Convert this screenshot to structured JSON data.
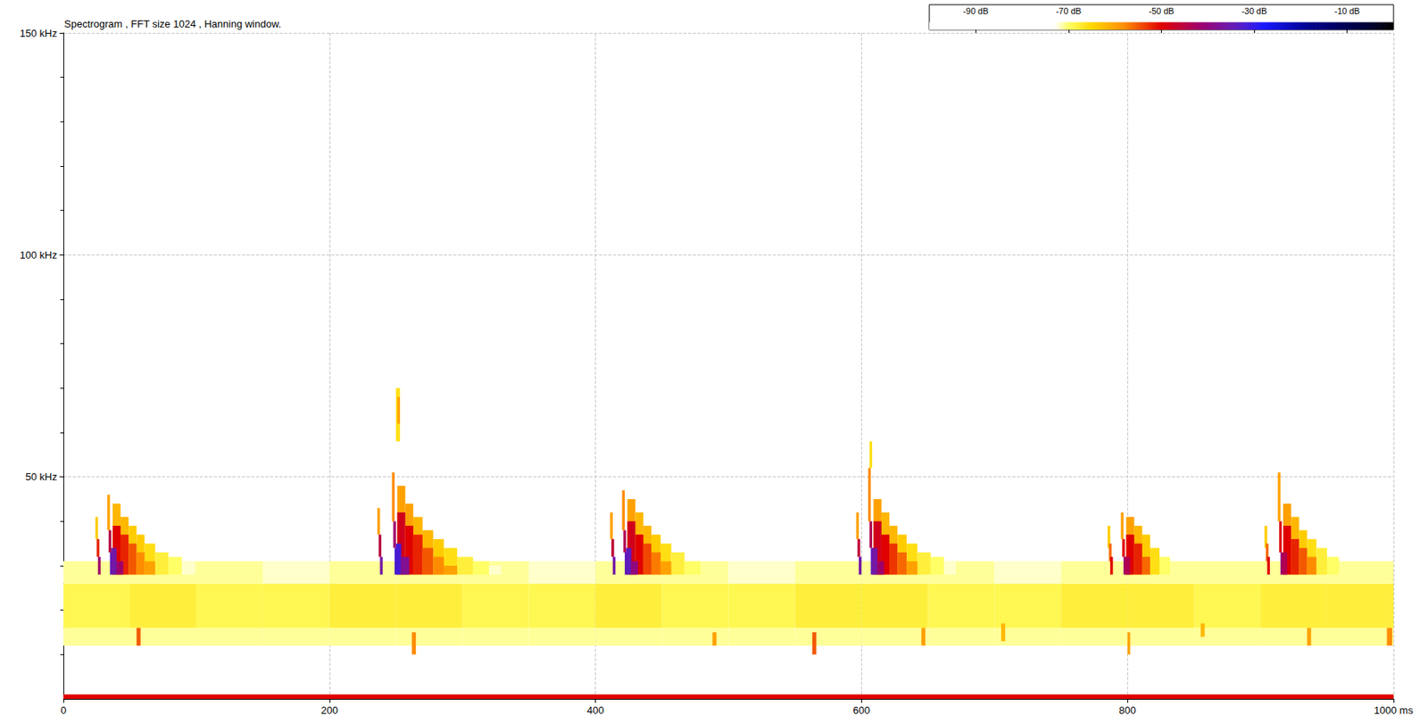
{
  "chart_data": {
    "type": "heatmap",
    "title": "Spectrogram , FFT size 1024 , Hanning window.",
    "xlim": [
      0,
      1000
    ],
    "xticks": [
      0,
      200,
      400,
      600,
      800,
      {
        "value": 1000,
        "label": "1000 ms"
      }
    ],
    "ylim": [
      0,
      150
    ],
    "yticks": [
      {
        "value": 50,
        "label": "50 kHz"
      },
      {
        "value": 100,
        "label": "100 kHz"
      },
      {
        "value": 150,
        "label": "150 kHz"
      }
    ],
    "grid": true,
    "colorbar": {
      "range": [
        -100,
        0
      ],
      "ticks": [
        {
          "value": -90,
          "label": "-90 dB"
        },
        {
          "value": -70,
          "label": "-70 dB"
        },
        {
          "value": -50,
          "label": "-50 dB"
        },
        {
          "value": -30,
          "label": "-30 dB"
        },
        {
          "value": -10,
          "label": "-10 dB"
        }
      ],
      "stops": [
        [
          -100,
          "#ffffff"
        ],
        [
          -73,
          "#ffffff"
        ],
        [
          -70,
          "#ffff66"
        ],
        [
          -65,
          "#ffd700"
        ],
        [
          -58,
          "#ff8c00"
        ],
        [
          -50,
          "#e00000"
        ],
        [
          -42,
          "#a0006a"
        ],
        [
          -35,
          "#6a1bb0"
        ],
        [
          -28,
          "#1a1aff"
        ],
        [
          -18,
          "#00008b"
        ],
        [
          -5,
          "#000030"
        ],
        [
          0,
          "#000000"
        ]
      ]
    },
    "cells": [
      [
        0,
        12,
        50,
        4,
        -71
      ],
      [
        0,
        16,
        50,
        10,
        -69
      ],
      [
        0,
        26,
        50,
        5,
        -71
      ],
      [
        50,
        12,
        50,
        4,
        -71
      ],
      [
        50,
        16,
        50,
        10,
        -68
      ],
      [
        50,
        26,
        50,
        5,
        -71
      ],
      [
        100,
        12,
        50,
        4,
        -71
      ],
      [
        100,
        16,
        50,
        10,
        -69
      ],
      [
        100,
        26,
        50,
        5,
        -71
      ],
      [
        150,
        12,
        50,
        4,
        -71
      ],
      [
        150,
        16,
        50,
        10,
        -69
      ],
      [
        150,
        26,
        50,
        5,
        -72
      ],
      [
        200,
        12,
        50,
        4,
        -71
      ],
      [
        200,
        16,
        50,
        10,
        -68
      ],
      [
        200,
        26,
        50,
        5,
        -71
      ],
      [
        250,
        12,
        50,
        4,
        -71
      ],
      [
        250,
        16,
        50,
        10,
        -68
      ],
      [
        250,
        26,
        50,
        5,
        -71
      ],
      [
        300,
        12,
        50,
        4,
        -71
      ],
      [
        300,
        16,
        50,
        10,
        -69
      ],
      [
        300,
        26,
        50,
        5,
        -71
      ],
      [
        350,
        12,
        50,
        4,
        -71
      ],
      [
        350,
        16,
        50,
        10,
        -69
      ],
      [
        350,
        26,
        50,
        5,
        -72
      ],
      [
        400,
        12,
        50,
        4,
        -71
      ],
      [
        400,
        16,
        50,
        10,
        -68
      ],
      [
        400,
        26,
        50,
        5,
        -71
      ],
      [
        450,
        12,
        50,
        4,
        -71
      ],
      [
        450,
        16,
        50,
        10,
        -69
      ],
      [
        450,
        26,
        50,
        5,
        -71
      ],
      [
        500,
        12,
        50,
        4,
        -71
      ],
      [
        500,
        16,
        50,
        10,
        -69
      ],
      [
        500,
        26,
        50,
        5,
        -72
      ],
      [
        550,
        12,
        50,
        4,
        -71
      ],
      [
        550,
        16,
        50,
        10,
        -68
      ],
      [
        550,
        26,
        50,
        5,
        -71
      ],
      [
        600,
        12,
        50,
        4,
        -71
      ],
      [
        600,
        16,
        50,
        10,
        -68
      ],
      [
        600,
        26,
        50,
        5,
        -71
      ],
      [
        650,
        12,
        50,
        4,
        -71
      ],
      [
        650,
        16,
        50,
        10,
        -69
      ],
      [
        650,
        26,
        50,
        5,
        -71
      ],
      [
        700,
        12,
        50,
        4,
        -71
      ],
      [
        700,
        16,
        50,
        10,
        -69
      ],
      [
        700,
        26,
        50,
        5,
        -72
      ],
      [
        750,
        12,
        50,
        4,
        -71
      ],
      [
        750,
        16,
        50,
        10,
        -68
      ],
      [
        750,
        26,
        50,
        5,
        -71
      ],
      [
        800,
        12,
        50,
        4,
        -71
      ],
      [
        800,
        16,
        50,
        10,
        -68
      ],
      [
        800,
        26,
        50,
        5,
        -71
      ],
      [
        850,
        12,
        50,
        4,
        -71
      ],
      [
        850,
        16,
        50,
        10,
        -69
      ],
      [
        850,
        26,
        50,
        5,
        -71
      ],
      [
        900,
        12,
        50,
        4,
        -71
      ],
      [
        900,
        16,
        50,
        10,
        -68
      ],
      [
        900,
        26,
        50,
        5,
        -71
      ],
      [
        950,
        12,
        50,
        4,
        -71
      ],
      [
        950,
        16,
        50,
        10,
        -68
      ],
      [
        950,
        26,
        50,
        5,
        -71
      ],
      [
        55,
        12,
        3,
        4,
        -55
      ],
      [
        262,
        10,
        3,
        5,
        -58
      ],
      [
        488,
        12,
        3,
        3,
        -60
      ],
      [
        563,
        10,
        3,
        5,
        -55
      ],
      [
        645,
        12,
        3,
        4,
        -60
      ],
      [
        705,
        13,
        3,
        4,
        -62
      ],
      [
        800,
        10,
        2,
        5,
        -60
      ],
      [
        855,
        14,
        3,
        3,
        -62
      ],
      [
        935,
        12,
        3,
        4,
        -60
      ],
      [
        995,
        12,
        4,
        4,
        -58
      ],
      [
        0,
        0,
        1000,
        1,
        -50
      ],
      [
        24,
        36,
        2,
        5,
        -64
      ],
      [
        25,
        32,
        2,
        4,
        -52
      ],
      [
        26,
        28,
        2,
        4,
        -42
      ],
      [
        33,
        38,
        2,
        8,
        -60
      ],
      [
        34,
        33,
        2,
        5,
        -45
      ],
      [
        35,
        28,
        2,
        5,
        -34
      ],
      [
        37,
        28,
        6,
        16,
        -62
      ],
      [
        43,
        28,
        6,
        13,
        -62
      ],
      [
        49,
        28,
        6,
        11,
        -64
      ],
      [
        55,
        28,
        6,
        9,
        -64
      ],
      [
        61,
        28,
        8,
        7,
        -66
      ],
      [
        69,
        28,
        10,
        5,
        -68
      ],
      [
        79,
        28,
        10,
        4,
        -70
      ],
      [
        89,
        28,
        10,
        3,
        -72
      ],
      [
        37,
        28,
        6,
        11,
        -50
      ],
      [
        43,
        28,
        6,
        9,
        -52
      ],
      [
        49,
        28,
        6,
        7,
        -55
      ],
      [
        55,
        28,
        6,
        5,
        -58
      ],
      [
        61,
        28,
        8,
        3,
        -60
      ],
      [
        36,
        28,
        4,
        6,
        -36
      ],
      [
        40,
        28,
        5,
        3,
        -42
      ],
      [
        236,
        37,
        2,
        6,
        -60
      ],
      [
        237,
        32,
        2,
        5,
        -45
      ],
      [
        238,
        28,
        2,
        4,
        -36
      ],
      [
        247,
        40,
        2,
        11,
        -58
      ],
      [
        248,
        34,
        2,
        6,
        -42
      ],
      [
        249,
        28,
        2,
        6,
        -32
      ],
      [
        251,
        28,
        6,
        20,
        -60
      ],
      [
        257,
        28,
        6,
        16,
        -60
      ],
      [
        263,
        28,
        7,
        13,
        -62
      ],
      [
        270,
        28,
        8,
        10,
        -62
      ],
      [
        278,
        28,
        8,
        8,
        -64
      ],
      [
        286,
        28,
        10,
        6,
        -66
      ],
      [
        296,
        28,
        12,
        4,
        -68
      ],
      [
        308,
        28,
        12,
        3,
        -70
      ],
      [
        320,
        28,
        9,
        2,
        -72
      ],
      [
        251,
        28,
        6,
        14,
        -48
      ],
      [
        257,
        28,
        6,
        11,
        -50
      ],
      [
        263,
        28,
        7,
        9,
        -52
      ],
      [
        270,
        28,
        8,
        6,
        -55
      ],
      [
        278,
        28,
        8,
        4,
        -58
      ],
      [
        286,
        28,
        10,
        2,
        -60
      ],
      [
        250,
        28,
        4,
        7,
        -32
      ],
      [
        254,
        28,
        6,
        4,
        -38
      ],
      [
        250,
        58,
        3,
        12,
        -66
      ],
      [
        251,
        62,
        2,
        6,
        -60
      ],
      [
        411,
        36,
        2,
        6,
        -60
      ],
      [
        412,
        32,
        2,
        4,
        -46
      ],
      [
        413,
        28,
        2,
        4,
        -36
      ],
      [
        420,
        38,
        2,
        9,
        -58
      ],
      [
        421,
        33,
        2,
        5,
        -44
      ],
      [
        422,
        28,
        2,
        5,
        -34
      ],
      [
        424,
        28,
        6,
        17,
        -60
      ],
      [
        430,
        28,
        6,
        14,
        -62
      ],
      [
        436,
        28,
        6,
        11,
        -62
      ],
      [
        442,
        28,
        7,
        9,
        -64
      ],
      [
        449,
        28,
        8,
        7,
        -66
      ],
      [
        457,
        28,
        10,
        5,
        -68
      ],
      [
        467,
        28,
        12,
        3,
        -70
      ],
      [
        424,
        28,
        6,
        12,
        -48
      ],
      [
        430,
        28,
        6,
        9,
        -50
      ],
      [
        436,
        28,
        6,
        7,
        -54
      ],
      [
        442,
        28,
        7,
        5,
        -57
      ],
      [
        449,
        28,
        8,
        3,
        -60
      ],
      [
        423,
        28,
        4,
        6,
        -34
      ],
      [
        427,
        28,
        5,
        3,
        -40
      ],
      [
        596,
        36,
        2,
        6,
        -60
      ],
      [
        597,
        32,
        2,
        4,
        -46
      ],
      [
        598,
        28,
        2,
        4,
        -36
      ],
      [
        605,
        40,
        2,
        12,
        -58
      ],
      [
        606,
        34,
        2,
        6,
        -44
      ],
      [
        607,
        28,
        2,
        6,
        -34
      ],
      [
        609,
        28,
        6,
        17,
        -60
      ],
      [
        615,
        28,
        6,
        14,
        -62
      ],
      [
        621,
        28,
        6,
        11,
        -62
      ],
      [
        627,
        28,
        7,
        9,
        -64
      ],
      [
        634,
        28,
        8,
        7,
        -66
      ],
      [
        642,
        28,
        10,
        5,
        -68
      ],
      [
        652,
        28,
        10,
        4,
        -70
      ],
      [
        662,
        28,
        9,
        3,
        -72
      ],
      [
        609,
        28,
        6,
        12,
        -48
      ],
      [
        615,
        28,
        6,
        9,
        -50
      ],
      [
        621,
        28,
        6,
        7,
        -53
      ],
      [
        627,
        28,
        7,
        5,
        -56
      ],
      [
        634,
        28,
        8,
        3,
        -60
      ],
      [
        608,
        28,
        4,
        6,
        -36
      ],
      [
        612,
        28,
        5,
        3,
        -42
      ],
      [
        606,
        52,
        2,
        6,
        -66
      ],
      [
        785,
        34,
        2,
        5,
        -64
      ],
      [
        786,
        31,
        2,
        4,
        -56
      ],
      [
        787,
        28,
        2,
        4,
        -50
      ],
      [
        795,
        36,
        2,
        6,
        -60
      ],
      [
        796,
        32,
        2,
        4,
        -50
      ],
      [
        797,
        28,
        2,
        4,
        -42
      ],
      [
        799,
        28,
        6,
        13,
        -60
      ],
      [
        805,
        28,
        6,
        11,
        -62
      ],
      [
        811,
        28,
        6,
        9,
        -64
      ],
      [
        817,
        28,
        7,
        6,
        -66
      ],
      [
        824,
        28,
        8,
        4,
        -70
      ],
      [
        799,
        28,
        6,
        9,
        -50
      ],
      [
        805,
        28,
        6,
        7,
        -52
      ],
      [
        811,
        28,
        6,
        4,
        -56
      ],
      [
        798,
        28,
        4,
        4,
        -44
      ],
      [
        903,
        34,
        2,
        5,
        -64
      ],
      [
        904,
        31,
        2,
        4,
        -56
      ],
      [
        905,
        28,
        2,
        4,
        -50
      ],
      [
        913,
        40,
        2,
        11,
        -60
      ],
      [
        914,
        33,
        2,
        7,
        -50
      ],
      [
        915,
        28,
        2,
        5,
        -40
      ],
      [
        917,
        28,
        6,
        16,
        -60
      ],
      [
        923,
        28,
        6,
        13,
        -62
      ],
      [
        929,
        28,
        6,
        10,
        -64
      ],
      [
        935,
        28,
        7,
        8,
        -66
      ],
      [
        942,
        28,
        8,
        6,
        -68
      ],
      [
        950,
        28,
        9,
        4,
        -70
      ],
      [
        917,
        28,
        6,
        11,
        -50
      ],
      [
        923,
        28,
        6,
        8,
        -52
      ],
      [
        929,
        28,
        6,
        6,
        -55
      ],
      [
        935,
        28,
        7,
        4,
        -58
      ],
      [
        916,
        28,
        4,
        5,
        -44
      ]
    ]
  }
}
